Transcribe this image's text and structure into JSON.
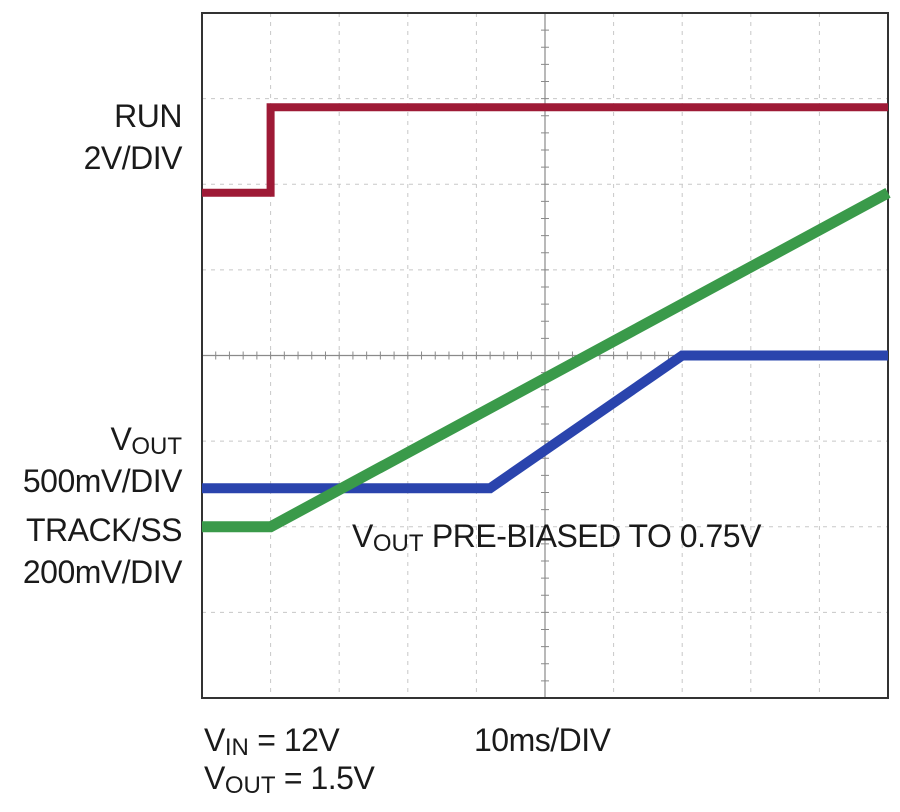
{
  "chart_data": {
    "type": "line",
    "grid": true,
    "divisions": {
      "x": 10,
      "y": 8
    },
    "channels": {
      "run": {
        "name": "RUN",
        "scale": "2V/DIV",
        "color": "#9e1a36"
      },
      "vout": {
        "name_main": "V",
        "name_sub": "OUT",
        "scale": "500mV/DIV",
        "color": "#2a44ad"
      },
      "track": {
        "name": "TRACK/SS",
        "scale": "200mV/DIV",
        "color": "#3a9a4a"
      }
    },
    "series": [
      {
        "channel": "run",
        "points": [
          [
            0,
            5.9
          ],
          [
            1.0,
            5.9
          ],
          [
            1.0,
            6.9
          ],
          [
            10,
            6.9
          ]
        ]
      },
      {
        "channel": "vout",
        "points": [
          [
            0,
            2.45
          ],
          [
            4.2,
            2.45
          ],
          [
            7.0,
            4.0
          ],
          [
            10,
            4.0
          ]
        ]
      },
      {
        "channel": "track",
        "points": [
          [
            0,
            2.0
          ],
          [
            1.0,
            2.0
          ],
          [
            10,
            5.9
          ]
        ]
      }
    ],
    "annotation": {
      "main": "V",
      "sub": "OUT",
      "rest": " PRE-BIASED TO 0.75V"
    },
    "timebase": "10ms/DIV",
    "conditions": [
      {
        "main": "V",
        "sub": "IN",
        "rest": " = 12V"
      },
      {
        "main": "V",
        "sub": "OUT",
        "rest": " = 1.5V"
      }
    ]
  }
}
